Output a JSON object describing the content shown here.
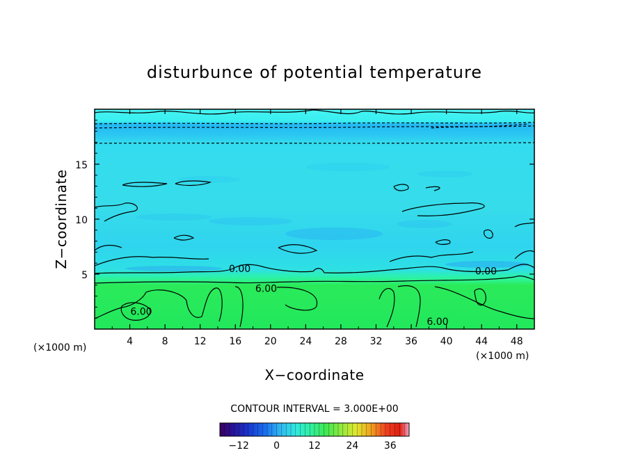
{
  "chart_data": {
    "type": "heatmap",
    "title": "disturbunce of potential temperature",
    "xlabel": "X−coordinate",
    "ylabel": "Z−coordinate",
    "x_unit_left": "(×1000 m)",
    "x_unit_right": "(×1000 m)",
    "xlim": [
      0,
      50
    ],
    "ylim": [
      0,
      20
    ],
    "x_ticks": [
      4,
      8,
      12,
      16,
      20,
      24,
      28,
      32,
      36,
      40,
      44,
      48
    ],
    "x_tick_labels": [
      "4",
      "8",
      "12",
      "16",
      "20",
      "24",
      "28",
      "32",
      "36",
      "40",
      "44",
      "48"
    ],
    "y_ticks": [
      5,
      10,
      15
    ],
    "y_tick_labels": [
      "5",
      "10",
      "15"
    ],
    "contour_interval_text": "CONTOUR INTERVAL = 3.000E+00",
    "contour_labels": [
      {
        "text": "0.00",
        "x": 16.5,
        "y": 5.5
      },
      {
        "text": "0.00",
        "x": 44.5,
        "y": 5.3
      },
      {
        "text": "6.00",
        "x": 19.5,
        "y": 3.7
      },
      {
        "text": "6.00",
        "x": 5.3,
        "y": 1.6
      },
      {
        "text": "6.00",
        "x": 39.0,
        "y": 0.7
      }
    ],
    "bands": [
      {
        "z_from": 0,
        "z_to": 4.4,
        "value": 6,
        "color": "#2bea56"
      },
      {
        "z_from": 4.4,
        "z_to": 6.5,
        "value": 3,
        "color": "#2ef0c2"
      },
      {
        "z_from": 6.5,
        "z_to": 16.8,
        "value": 0,
        "color": "#33e6d8"
      },
      {
        "z_from": 16.8,
        "z_to": 18.6,
        "value": -3,
        "color": "#2fb0f0"
      },
      {
        "z_from": 18.6,
        "z_to": 20,
        "value": 0,
        "color": "#3ef0f0"
      }
    ],
    "colorbar": {
      "min": -18,
      "max": 42,
      "tick_values": [
        -12,
        0,
        12,
        24,
        36
      ],
      "tick_labels": [
        "−12",
        "0",
        "12",
        "24",
        "36"
      ]
    }
  }
}
